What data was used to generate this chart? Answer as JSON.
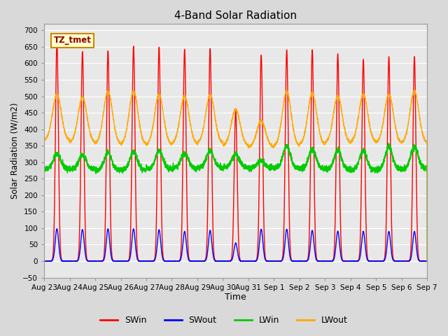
{
  "title": "4-Band Solar Radiation",
  "xlabel": "Time",
  "ylabel": "Solar Radiation (W/m2)",
  "ylim": [
    -50,
    720
  ],
  "background_color": "#d9d9d9",
  "plot_bg_color": "#e8e8e8",
  "legend_labels": [
    "SWin",
    "SWout",
    "LWin",
    "LWout"
  ],
  "legend_colors": [
    "#ff0000",
    "#0000ff",
    "#00cc00",
    "#ffaa00"
  ],
  "annotation_text": "TZ_tmet",
  "annotation_bg": "#ffffcc",
  "annotation_border": "#cc8800",
  "num_days": 15,
  "swin_peaks": [
    665,
    635,
    638,
    652,
    649,
    643,
    645,
    455,
    625,
    641,
    641,
    629,
    612,
    620,
    620
  ],
  "swout_peaks": [
    98,
    96,
    98,
    98,
    95,
    90,
    93,
    55,
    97,
    97,
    93,
    91,
    90,
    90,
    90
  ],
  "lwin_night": [
    280,
    278,
    275,
    277,
    280,
    282,
    284,
    285,
    283,
    282,
    280,
    278,
    276,
    278,
    280
  ],
  "lwin_day_peak": [
    325,
    323,
    330,
    332,
    335,
    328,
    334,
    325,
    305,
    350,
    340,
    338,
    335,
    348,
    348
  ],
  "lwout_night": [
    365,
    358,
    355,
    353,
    352,
    355,
    358,
    350,
    345,
    348,
    352,
    358,
    360,
    358,
    358
  ],
  "lwout_day_peak": [
    505,
    497,
    515,
    515,
    505,
    500,
    505,
    460,
    425,
    515,
    510,
    500,
    505,
    505,
    515
  ],
  "date_labels": [
    "Aug 23",
    "Aug 24",
    "Aug 25",
    "Aug 26",
    "Aug 27",
    "Aug 28",
    "Aug 29",
    "Aug 30",
    "Aug 31",
    "Sep 1",
    "Sep 2",
    "Sep 3",
    "Sep 4",
    "Sep 5",
    "Sep 6",
    "Sep 7"
  ]
}
